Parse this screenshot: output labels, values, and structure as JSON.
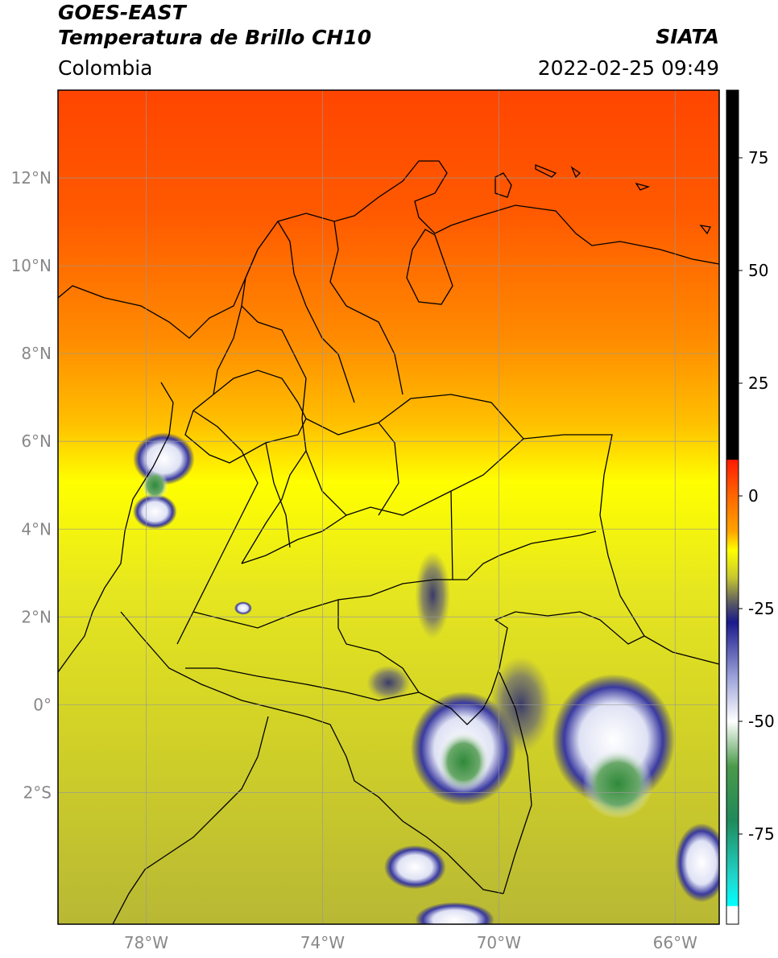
{
  "header": {
    "title_line1": "GOES-EAST",
    "title_line2": "Temperatura de Brillo CH10",
    "region": "Colombia",
    "agency": "SIATA",
    "datetime": "2022-02-25 09:49"
  },
  "map": {
    "lon_range": [
      -80,
      -65
    ],
    "lat_range": [
      -5,
      14
    ],
    "lat_ticks": [
      {
        "value": 12,
        "label": "12°N"
      },
      {
        "value": 10,
        "label": "10°N"
      },
      {
        "value": 8,
        "label": "8°N"
      },
      {
        "value": 6,
        "label": "6°N"
      },
      {
        "value": 4,
        "label": "4°N"
      },
      {
        "value": 2,
        "label": "2°N"
      },
      {
        "value": 0,
        "label": "0°"
      },
      {
        "value": -2,
        "label": "2°S"
      }
    ],
    "lon_ticks": [
      {
        "value": -78,
        "label": "78°W"
      },
      {
        "value": -74,
        "label": "74°W"
      },
      {
        "value": -70,
        "label": "70°W"
      },
      {
        "value": -66,
        "label": "66°W"
      }
    ],
    "grid": true
  },
  "colorbar": {
    "range": [
      -95,
      90
    ],
    "ticks": [
      {
        "value": 75,
        "label": "75"
      },
      {
        "value": 50,
        "label": "50"
      },
      {
        "value": 25,
        "label": "25"
      },
      {
        "value": 0,
        "label": "0"
      },
      {
        "value": -25,
        "label": "-25"
      },
      {
        "value": -50,
        "label": "-50"
      },
      {
        "value": -75,
        "label": "-75"
      }
    ],
    "stops": [
      {
        "value": 90,
        "color": "#000000"
      },
      {
        "value": 8,
        "color": "#000000"
      },
      {
        "value": 8,
        "color": "#ff1a00"
      },
      {
        "value": 0,
        "color": "#ff6600"
      },
      {
        "value": -8,
        "color": "#ffa500"
      },
      {
        "value": -12,
        "color": "#ffff00"
      },
      {
        "value": -18,
        "color": "#c8c830"
      },
      {
        "value": -24,
        "color": "#555566"
      },
      {
        "value": -28,
        "color": "#1a1a8c"
      },
      {
        "value": -40,
        "color": "#9aa0d8"
      },
      {
        "value": -50,
        "color": "#ffffff"
      },
      {
        "value": -60,
        "color": "#4a9a4a"
      },
      {
        "value": -72,
        "color": "#1f8a5a"
      },
      {
        "value": -85,
        "color": "#20d8d0"
      },
      {
        "value": -91,
        "color": "#00ffff"
      },
      {
        "value": -91,
        "color": "#ffffff"
      },
      {
        "value": -95,
        "color": "#ffffff"
      }
    ]
  },
  "storms": [
    {
      "lon": -77.6,
      "lat": 5.6,
      "rx": 0.7,
      "ry": 0.6,
      "kind": "cold"
    },
    {
      "lon": -77.8,
      "lat": 4.4,
      "rx": 0.5,
      "ry": 0.4,
      "kind": "cold"
    },
    {
      "lon": -77.8,
      "lat": 5.0,
      "rx": 0.3,
      "ry": 0.35,
      "kind": "core"
    },
    {
      "lon": -70.8,
      "lat": -1.0,
      "rx": 1.2,
      "ry": 1.3,
      "kind": "cold"
    },
    {
      "lon": -70.8,
      "lat": -1.3,
      "rx": 0.6,
      "ry": 0.7,
      "kind": "core"
    },
    {
      "lon": -67.4,
      "lat": -0.8,
      "rx": 1.4,
      "ry": 1.5,
      "kind": "cold"
    },
    {
      "lon": -67.3,
      "lat": -1.8,
      "rx": 0.8,
      "ry": 0.8,
      "kind": "core"
    },
    {
      "lon": -71.9,
      "lat": -3.7,
      "rx": 0.7,
      "ry": 0.5,
      "kind": "cold"
    },
    {
      "lon": -71.0,
      "lat": -4.9,
      "rx": 0.9,
      "ry": 0.4,
      "kind": "cold"
    },
    {
      "lon": -65.4,
      "lat": -3.6,
      "rx": 0.6,
      "ry": 0.9,
      "kind": "cold"
    },
    {
      "lon": -72.5,
      "lat": 0.5,
      "rx": 0.5,
      "ry": 0.4,
      "kind": "dark"
    },
    {
      "lon": -71.5,
      "lat": 2.5,
      "rx": 0.4,
      "ry": 1.0,
      "kind": "dark"
    },
    {
      "lon": -69.5,
      "lat": 0.0,
      "rx": 0.7,
      "ry": 1.1,
      "kind": "dark"
    },
    {
      "lon": -75.8,
      "lat": 2.2,
      "rx": 0.2,
      "ry": 0.15,
      "kind": "cold"
    }
  ]
}
